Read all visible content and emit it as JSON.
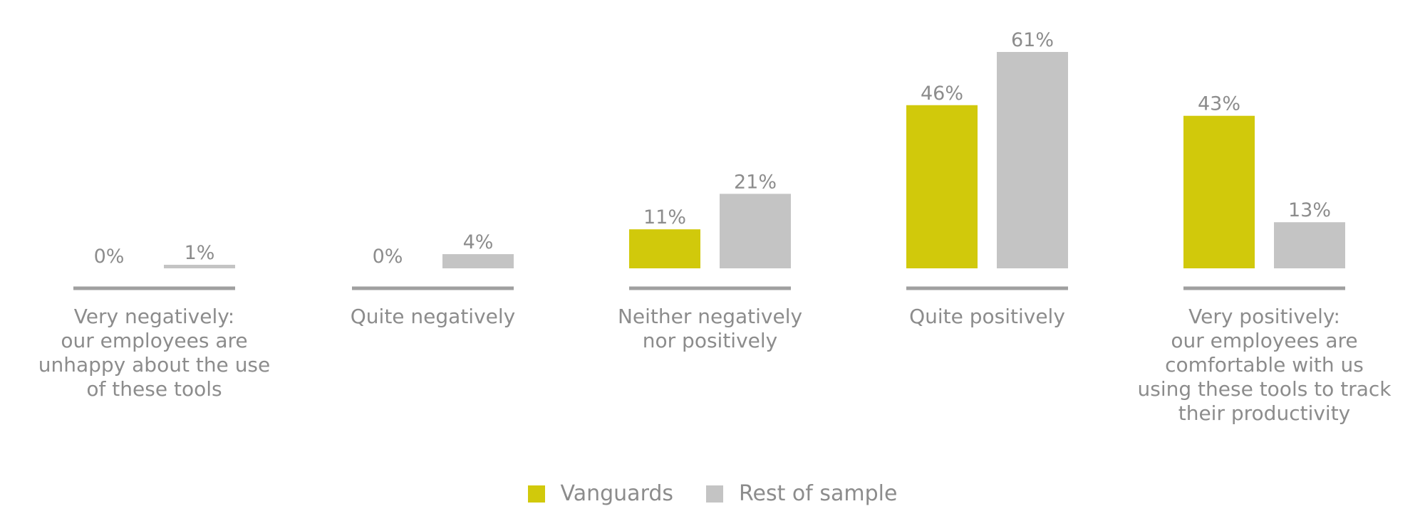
{
  "chart_data": {
    "type": "bar",
    "categories": [
      "Very negatively:\nour employees are\nunhappy about the use\nof these tools",
      "Quite negatively",
      "Neither negatively\nnor positively",
      "Quite positively",
      "Very positively:\nour employees are\ncomfortable with us\nusing these tools to track\ntheir productivity"
    ],
    "series": [
      {
        "name": "Vanguards",
        "values": [
          0,
          0,
          11,
          46,
          43
        ],
        "value_labels": [
          "0%",
          "0%",
          "11%",
          "46%",
          "43%"
        ]
      },
      {
        "name": "Rest of sample",
        "values": [
          1,
          4,
          21,
          61,
          13
        ],
        "value_labels": [
          "1%",
          "4%",
          "21%",
          "61%",
          "13%"
        ]
      }
    ],
    "ylim": [
      0,
      61
    ],
    "grid": false,
    "legend_position": "bottom-center",
    "colors": {
      "Vanguards": "#d1c90b",
      "Rest of sample": "#c4c4c4",
      "axis": "#a0a0a0",
      "text": "#8c8c8c"
    }
  },
  "legend": {
    "items": [
      "Vanguards",
      "Rest of sample"
    ]
  }
}
